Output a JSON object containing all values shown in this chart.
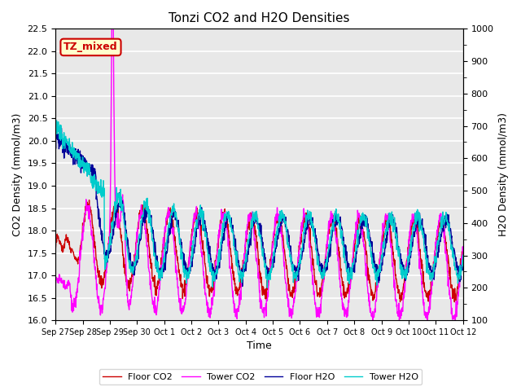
{
  "title": "Tonzi CO2 and H2O Densities",
  "xlabel": "Time",
  "ylabel_left": "CO2 Density (mmol/m3)",
  "ylabel_right": "H2O Density (mmol/m3)",
  "ylim_left": [
    16.0,
    22.5
  ],
  "ylim_right": [
    100,
    1000
  ],
  "annotation_text": "TZ_mixed",
  "annotation_facecolor": "#ffffcc",
  "annotation_edgecolor": "#cc0000",
  "annotation_textcolor": "#cc0000",
  "colors": {
    "floor_co2": "#cc0000",
    "tower_co2": "#ff00ff",
    "floor_h2o": "#000099",
    "tower_h2o": "#00cccc"
  },
  "legend_labels": [
    "Floor CO2",
    "Tower CO2",
    "Floor H2O",
    "Tower H2O"
  ],
  "bg_color": "#e8e8e8",
  "n_days": 15,
  "n_per_day": 96,
  "xtick_positions": [
    0,
    1,
    2,
    3,
    4,
    5,
    6,
    7,
    8,
    9,
    10,
    11,
    12,
    13,
    14,
    15
  ],
  "xtick_labels": [
    "Sep 27",
    "Sep 28",
    "Sep 29",
    "Sep 30",
    "Oct 1",
    "Oct 2",
    "Oct 3",
    "Oct 4",
    "Oct 5",
    "Oct 6",
    "Oct 7",
    "Oct 8",
    "Oct 9",
    "Oct 10",
    "Oct 11",
    "Oct 12"
  ],
  "grid_color": "#ffffff",
  "linewidth": 1.0
}
